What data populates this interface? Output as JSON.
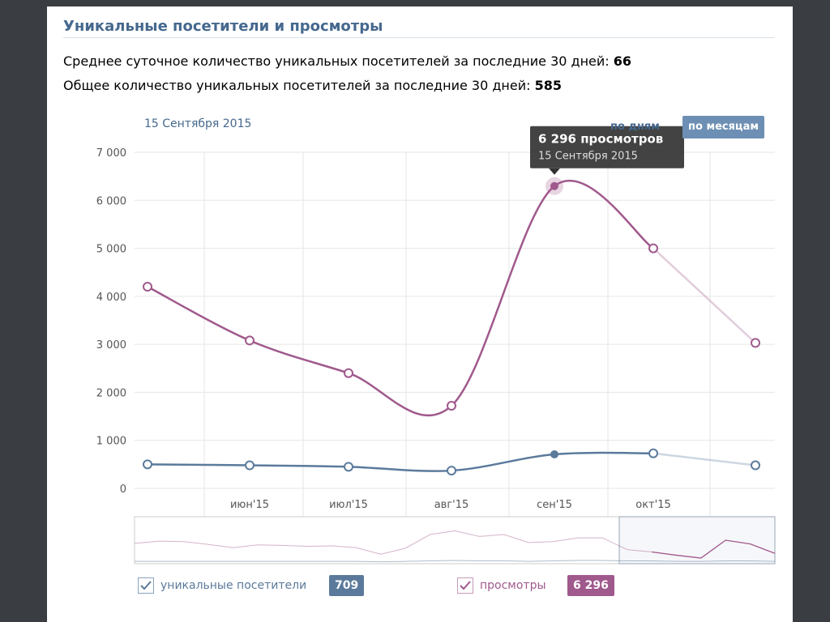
{
  "header": {
    "title": "Уникальные посетители и просмотры"
  },
  "stats": {
    "avg_daily_label": "Среднее суточное количество уникальных посетителей за последние 30 дней:",
    "avg_daily_value": "66",
    "total_label": "Общее количество уникальных посетителей за последние 30 дней:",
    "total_value": "585"
  },
  "controls": {
    "selected_date": "15 Сентября 2015",
    "by_days": "по дням",
    "by_months": "по месяцам",
    "active_mode": "по месяцам"
  },
  "tooltip": {
    "value": "6 296 просмотров",
    "date": "15 Сентября 2015"
  },
  "legend": [
    {
      "label": "уникальные посетители",
      "value": "709",
      "checked": true,
      "color": "#5b7a9b"
    },
    {
      "label": "просмотры",
      "value": "6 296",
      "checked": true,
      "color": "#a0598c"
    }
  ],
  "chart_data": {
    "type": "line",
    "categories": [
      "",
      "июн'15",
      "июл'15",
      "авг'15",
      "сен'15",
      "окт'15",
      ""
    ],
    "series": [
      {
        "values": [
          4200,
          3080,
          2400,
          1720,
          6296,
          5000,
          3030
        ],
        "color": "#a0598c"
      },
      {
        "values": [
          500,
          480,
          450,
          370,
          709,
          730,
          480
        ],
        "color": "#5b7a9b"
      }
    ],
    "ylim": [
      0,
      7000
    ],
    "yticks": [
      "0",
      "1 000",
      "2 000",
      "3 000",
      "4 000",
      "5 000",
      "6 000",
      "7 000"
    ],
    "grid": true,
    "highlight_index": 4,
    "navigator": {
      "views": [
        0.43,
        0.48,
        0.47,
        0.41,
        0.34,
        0.4,
        0.39,
        0.37,
        0.38,
        0.34,
        0.2,
        0.33,
        0.62,
        0.7,
        0.58,
        0.62,
        0.45,
        0.47,
        0.55,
        0.55,
        0.3,
        0.25,
        0.18,
        0.12,
        0.5,
        0.42,
        0.22
      ],
      "visitors": [
        0.05,
        0.05,
        0.05,
        0.05,
        0.05,
        0.05,
        0.05,
        0.05,
        0.05,
        0.05,
        0.04,
        0.05,
        0.06,
        0.07,
        0.06,
        0.06,
        0.05,
        0.06,
        0.07,
        0.07,
        0.06,
        0.06,
        0.05,
        0.05,
        0.06,
        0.06,
        0.05
      ]
    }
  }
}
